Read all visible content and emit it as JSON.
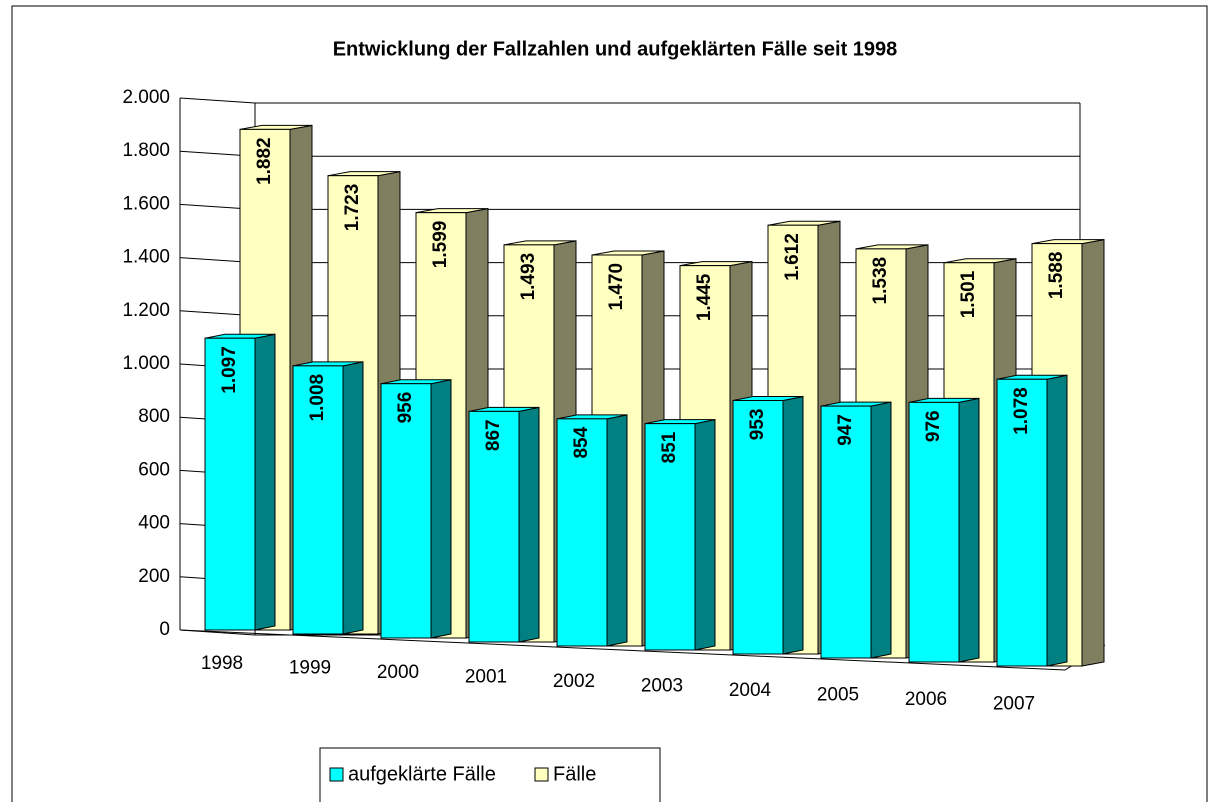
{
  "chart_data": {
    "type": "bar3d",
    "title": "Entwicklung der Fallzahlen und aufgeklärten Fälle seit 1998",
    "categories": [
      "1998",
      "1999",
      "2000",
      "2001",
      "2002",
      "2003",
      "2004",
      "2005",
      "2006",
      "2007"
    ],
    "series": [
      {
        "name": "aufgeklärte Fälle",
        "color": "#00ffff",
        "side_color": "#008080",
        "values": [
          1097,
          1008,
          956,
          867,
          854,
          851,
          953,
          947,
          976,
          1078
        ],
        "value_labels": [
          "1.097",
          "1.008",
          "956",
          "867",
          "854",
          "851",
          "953",
          "947",
          "976",
          "1.078"
        ]
      },
      {
        "name": "Fälle",
        "color": "#ffffc0",
        "side_color": "#7f7f5f",
        "values": [
          1882,
          1723,
          1599,
          1493,
          1470,
          1445,
          1612,
          1538,
          1501,
          1588
        ],
        "value_labels": [
          "1.882",
          "1.723",
          "1.599",
          "1.493",
          "1.470",
          "1.445",
          "1.612",
          "1.538",
          "1.501",
          "1.588"
        ]
      }
    ],
    "ylim": [
      0,
      2000
    ],
    "yticks": [
      0,
      200,
      400,
      600,
      800,
      {
        "value": 1000,
        "label": "1.000"
      },
      {
        "value": 1200,
        "label": "1.200"
      },
      {
        "value": 1400,
        "label": "1.400"
      },
      {
        "value": 1600,
        "label": "1.600"
      },
      {
        "value": 1800,
        "label": "1.800"
      },
      {
        "value": 2000,
        "label": "2.000"
      }
    ],
    "grid": true,
    "legend": "bottom"
  }
}
